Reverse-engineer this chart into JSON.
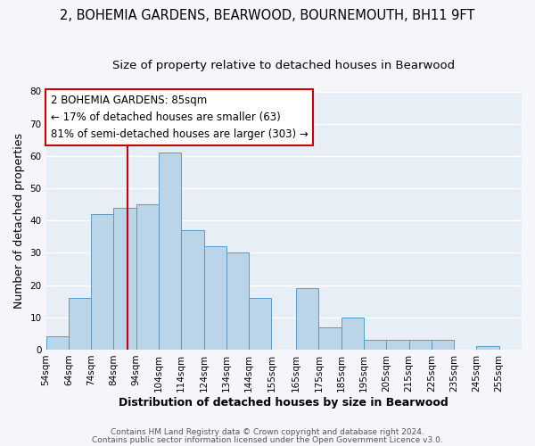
{
  "title": "2, BOHEMIA GARDENS, BEARWOOD, BOURNEMOUTH, BH11 9FT",
  "subtitle": "Size of property relative to detached houses in Bearwood",
  "xlabel": "Distribution of detached houses by size in Bearwood",
  "ylabel": "Number of detached properties",
  "bin_labels": [
    "54sqm",
    "64sqm",
    "74sqm",
    "84sqm",
    "94sqm",
    "104sqm",
    "114sqm",
    "124sqm",
    "134sqm",
    "144sqm",
    "155sqm",
    "165sqm",
    "175sqm",
    "185sqm",
    "195sqm",
    "205sqm",
    "215sqm",
    "225sqm",
    "235sqm",
    "245sqm",
    "255sqm"
  ],
  "bin_starts": [
    49,
    59,
    69,
    79,
    89,
    99,
    109,
    119,
    129,
    139,
    149,
    160,
    170,
    180,
    190,
    200,
    210,
    220,
    230,
    240,
    250
  ],
  "bin_ends": [
    59,
    69,
    79,
    89,
    99,
    109,
    119,
    129,
    139,
    149,
    160,
    170,
    180,
    190,
    200,
    210,
    220,
    230,
    240,
    250,
    260
  ],
  "bar_values": [
    4,
    16,
    42,
    44,
    45,
    61,
    37,
    32,
    30,
    16,
    0,
    19,
    7,
    10,
    3,
    3,
    3,
    3,
    0,
    1,
    0
  ],
  "bar_color": "#bad4e8",
  "bar_edge_color": "#5b9ac4",
  "vline_x": 85,
  "vline_color": "#cc0000",
  "annotation_title": "2 BOHEMIA GARDENS: 85sqm",
  "annotation_line1": "← 17% of detached houses are smaller (63)",
  "annotation_line2": "81% of semi-detached houses are larger (303) →",
  "annotation_box_color": "#cc0000",
  "xlim_left": 49,
  "xlim_right": 260,
  "ylim": [
    0,
    80
  ],
  "yticks": [
    0,
    10,
    20,
    30,
    40,
    50,
    60,
    70,
    80
  ],
  "footer1": "Contains HM Land Registry data © Crown copyright and database right 2024.",
  "footer2": "Contains public sector information licensed under the Open Government Licence v3.0.",
  "bg_color": "#f4f6f9",
  "plot_bg_color": "#e8eef5",
  "grid_color": "#ffffff",
  "title_fontsize": 10.5,
  "subtitle_fontsize": 9.5,
  "axis_label_fontsize": 9,
  "tick_fontsize": 7.5,
  "annotation_fontsize": 8.5,
  "footer_fontsize": 6.5
}
